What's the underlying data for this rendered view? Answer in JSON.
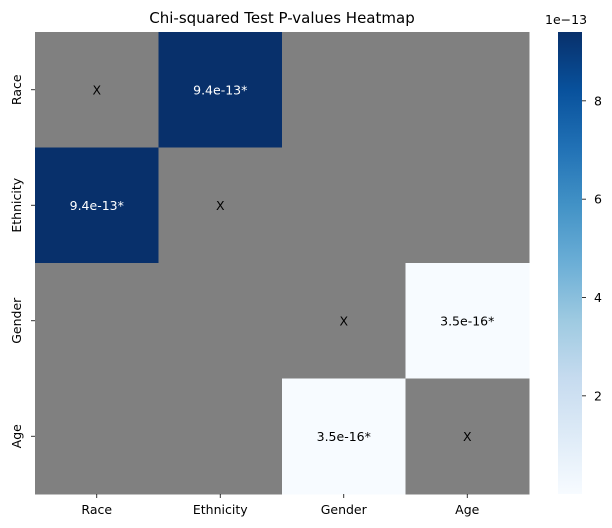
{
  "chart_data": {
    "type": "heatmap",
    "title": "Chi-squared Test P-values Heatmap",
    "rows": [
      "Race",
      "Ethnicity",
      "Gender",
      "Age"
    ],
    "columns": [
      "Race",
      "Ethnicity",
      "Gender",
      "Age"
    ],
    "values": [
      [
        null,
        9.4e-13,
        null,
        null
      ],
      [
        9.4e-13,
        null,
        null,
        null
      ],
      [
        null,
        null,
        null,
        3.5e-16
      ],
      [
        null,
        null,
        3.5e-16,
        null
      ]
    ],
    "annotations": [
      [
        "X",
        "9.4e-13*",
        "",
        ""
      ],
      [
        "9.4e-13*",
        "X",
        "",
        ""
      ],
      [
        "",
        "",
        "X",
        "3.5e-16*"
      ],
      [
        "",
        "",
        "3.5e-16*",
        "X"
      ]
    ],
    "masked_color": "#808080",
    "colormap": "Blues",
    "colorbar": {
      "range": [
        3.5e-16,
        9.4e-13
      ],
      "ticks": [
        2,
        4,
        6,
        8
      ],
      "tick_scale": 1e-13,
      "exponent_label": "1e−13"
    }
  }
}
